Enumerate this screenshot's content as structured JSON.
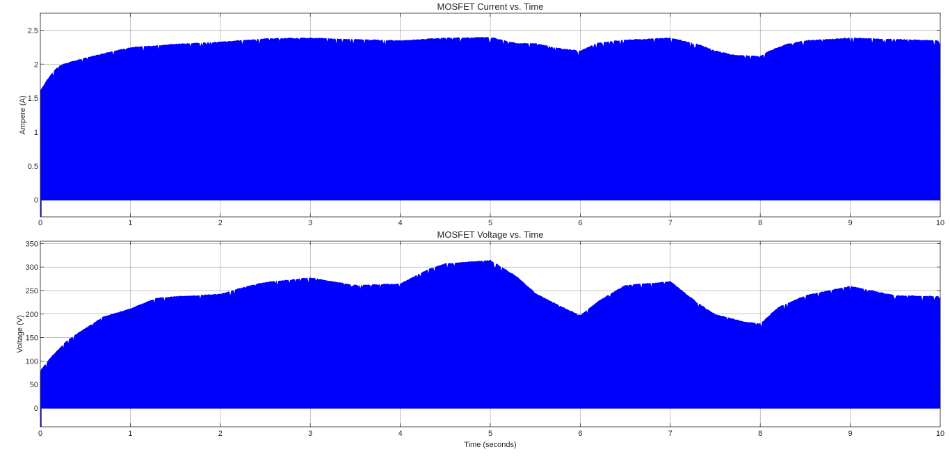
{
  "figure": {
    "background": "#ffffff",
    "axes_color": "#262626",
    "grid_color": "#262626",
    "fill_color": "#0000ff"
  },
  "chart_data": [
    {
      "type": "area",
      "title": "MOSFET Current vs. Time",
      "xlabel": "",
      "ylabel": "Ampere (A)",
      "xlim": [
        0,
        10
      ],
      "ylim": [
        -0.25,
        2.75
      ],
      "xticks": [
        0,
        1,
        2,
        3,
        4,
        5,
        6,
        7,
        8,
        9,
        10
      ],
      "yticks": [
        0,
        0.5,
        1,
        1.5,
        2,
        2.5
      ],
      "xtick_labels": [
        "0",
        "1",
        "2",
        "3",
        "4",
        "5",
        "6",
        "7",
        "8",
        "9",
        "10"
      ],
      "ytick_labels": [
        "0",
        "0.5",
        "1",
        "1.5",
        "2",
        "2.5"
      ],
      "grid": true,
      "series": [
        {
          "color": "#0000ff",
          "lower": 0,
          "envelope": {
            "x": [
              0,
              0.05,
              0.1,
              0.15,
              0.2,
              0.25,
              0.3,
              0.4,
              0.5,
              0.6,
              0.8,
              1.0,
              1.2,
              1.5,
              2.0,
              2.5,
              3.0,
              3.5,
              4.0,
              4.5,
              5.0,
              5.3,
              5.5,
              5.8,
              6.0,
              6.2,
              6.5,
              7.0,
              7.3,
              7.5,
              7.7,
              8.0,
              8.1,
              8.3,
              8.5,
              9.0,
              9.5,
              10.0
            ],
            "y": [
              1.62,
              1.72,
              1.82,
              1.9,
              1.97,
              2.0,
              2.02,
              2.06,
              2.1,
              2.13,
              2.19,
              2.25,
              2.27,
              2.3,
              2.33,
              2.38,
              2.39,
              2.37,
              2.35,
              2.39,
              2.4,
              2.31,
              2.31,
              2.23,
              2.2,
              2.32,
              2.36,
              2.39,
              2.3,
              2.2,
              2.14,
              2.12,
              2.2,
              2.3,
              2.35,
              2.39,
              2.37,
              2.35
            ]
          }
        }
      ]
    },
    {
      "type": "area",
      "title": "MOSFET Voltage vs. Time",
      "xlabel": "Time (seconds)",
      "ylabel": "Voltage (V)",
      "xlim": [
        0,
        10
      ],
      "ylim": [
        -40,
        355
      ],
      "xticks": [
        0,
        1,
        2,
        3,
        4,
        5,
        6,
        7,
        8,
        9,
        10
      ],
      "yticks": [
        0,
        50,
        100,
        150,
        200,
        250,
        300,
        350
      ],
      "xtick_labels": [
        "0",
        "1",
        "2",
        "3",
        "4",
        "5",
        "6",
        "7",
        "8",
        "9",
        "10"
      ],
      "ytick_labels": [
        "0",
        "50",
        "100",
        "150",
        "200",
        "250",
        "300",
        "350"
      ],
      "grid": true,
      "series": [
        {
          "color": "#0000ff",
          "lower": 0,
          "envelope": {
            "x": [
              0,
              0.1,
              0.2,
              0.3,
              0.5,
              0.7,
              1.0,
              1.3,
              1.5,
              2.0,
              2.3,
              2.5,
              3.0,
              3.5,
              4.0,
              4.3,
              4.5,
              5.0,
              5.3,
              5.5,
              5.8,
              6.0,
              6.2,
              6.5,
              7.0,
              7.3,
              7.5,
              7.8,
              8.0,
              8.2,
              8.5,
              9.0,
              9.5,
              10.0
            ],
            "y": [
              80,
              105,
              125,
              145,
              170,
              195,
              212,
              235,
              238,
              243,
              260,
              268,
              278,
              262,
              265,
              295,
              308,
              315,
              280,
              245,
              215,
              198,
              228,
              262,
              270,
              225,
              200,
              185,
              180,
              215,
              240,
              260,
              240,
              238
            ]
          }
        }
      ]
    }
  ]
}
